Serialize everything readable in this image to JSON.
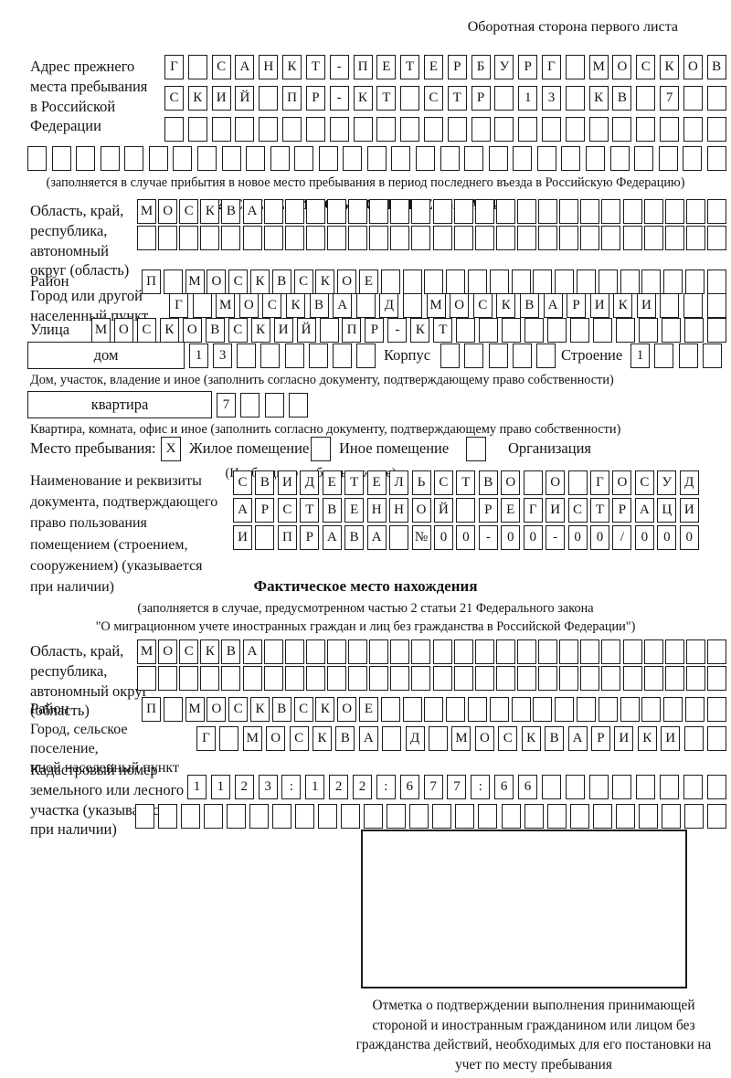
{
  "page": {
    "header_note": "Оборотная сторона первого листа"
  },
  "prev_address": {
    "label": "Адрес прежнего\nместа пребывания\nв Российской\nФедерации",
    "row1": {
      "count": 24,
      "text": "Г САНКТ-ПЕТЕРБУРГ МОСКОВ"
    },
    "row2": {
      "count": 24,
      "text": "СКИЙ ПР-КТ СТР 13 КВ 7"
    },
    "row3": {
      "count": 24,
      "text": ""
    },
    "row4": {
      "count": 29,
      "text": ""
    },
    "note": "(заполняется в случае прибытия в новое место пребывания в период последнего въезда в Российскую Федерацию)"
  },
  "section2": {
    "title": "2. СВЕДЕНИЯ О МЕСТЕ ПРЕБЫВАНИЯ",
    "region": {
      "label": "Область, край,\nреспублика,\nавтономный\nокруг (область)",
      "row1": {
        "count": 28,
        "text": "МОСКВА"
      },
      "row2": {
        "count": 28,
        "text": ""
      }
    },
    "district": {
      "label": "Район",
      "row": {
        "count": 27,
        "text": "П МОСКВСКОЕ"
      }
    },
    "city": {
      "label": "Город или другой\nнаселенный пункт",
      "row": {
        "count": 24,
        "text": "Г МОСКВА Д МОСКВАРИКИ"
      }
    },
    "street": {
      "label": "Улица",
      "row": {
        "count": 28,
        "text": "МОСКОВСКИЙ ПР-КТ"
      }
    },
    "house": {
      "box_label": "дом",
      "cells": {
        "count": 8,
        "text": "13"
      },
      "korpus_label": "Корпус",
      "korpus_cells": {
        "count": 5,
        "text": ""
      },
      "stroenie_label": "Строение",
      "stroenie_cells": {
        "count": 4,
        "text": "1"
      },
      "note": "Дом, участок, владение и иное (заполнить согласно документу, подтверждающему право собственности)"
    },
    "apartment": {
      "box_label": "квартира",
      "cells": {
        "count": 4,
        "text": "7"
      },
      "note": "Квартира, комната, офис и иное (заполнить согласно документу, подтверждающему право собственности)"
    },
    "stay_type": {
      "label": "Место пребывания:",
      "options": [
        {
          "label": "Жилое помещение",
          "checked": "X"
        },
        {
          "label": "Иное помещение",
          "checked": ""
        },
        {
          "label": "Организация",
          "checked": ""
        }
      ],
      "note": "(Необходимо выбрать нужное)"
    },
    "document": {
      "label": "Наименование и реквизиты\nдокумента, подтверждающего\nправо пользования\nпомещением (строением,\nсооружением) (указывается\nпри наличии)",
      "row1": {
        "count": 21,
        "text": "СВИДЕТЕЛЬСТВО О ГОСУД"
      },
      "row2": {
        "count": 21,
        "text": "АРСТВЕННОЙ РЕГИСТРАЦИ"
      },
      "row3": {
        "count": 21,
        "text": "И ПРАВА №00-00-00/000"
      }
    }
  },
  "actual_location": {
    "title": "Фактическое место нахождения",
    "note1": "(заполняется в случае, предусмотренном частью 2 статьи 21 Федерального закона",
    "note2": "\"О миграционном учете иностранных граждан и лиц без гражданства в Российской Федерации\")",
    "region": {
      "label": "Область, край,\nреспублика,\nавтономный округ\n(область)",
      "row1": {
        "count": 28,
        "text": "МОСКВА"
      },
      "row2": {
        "count": 28,
        "text": ""
      }
    },
    "district": {
      "label": "Район",
      "row": {
        "count": 27,
        "text": "П МОСКВСКОЕ"
      }
    },
    "city": {
      "label": "Город, сельское поселение,\nиной населенный пункт",
      "row": {
        "count": 23,
        "text": "Г МОСКВА Д МОСКВАРИКИ"
      }
    },
    "cadastre": {
      "label": "Кадастровый номер\nземельного или лесного\nучастка (указывается\nпри наличии)",
      "row1": {
        "count": 23,
        "text": "1123:122:677:66"
      },
      "row2": {
        "count": 26,
        "text": ""
      }
    },
    "stamp_note": "Отметка о подтверждении выполнения принимающей стороной и иностранным гражданином или лицом без гражданства действий, необходимых для его постановки на учет по месту пребывания"
  }
}
